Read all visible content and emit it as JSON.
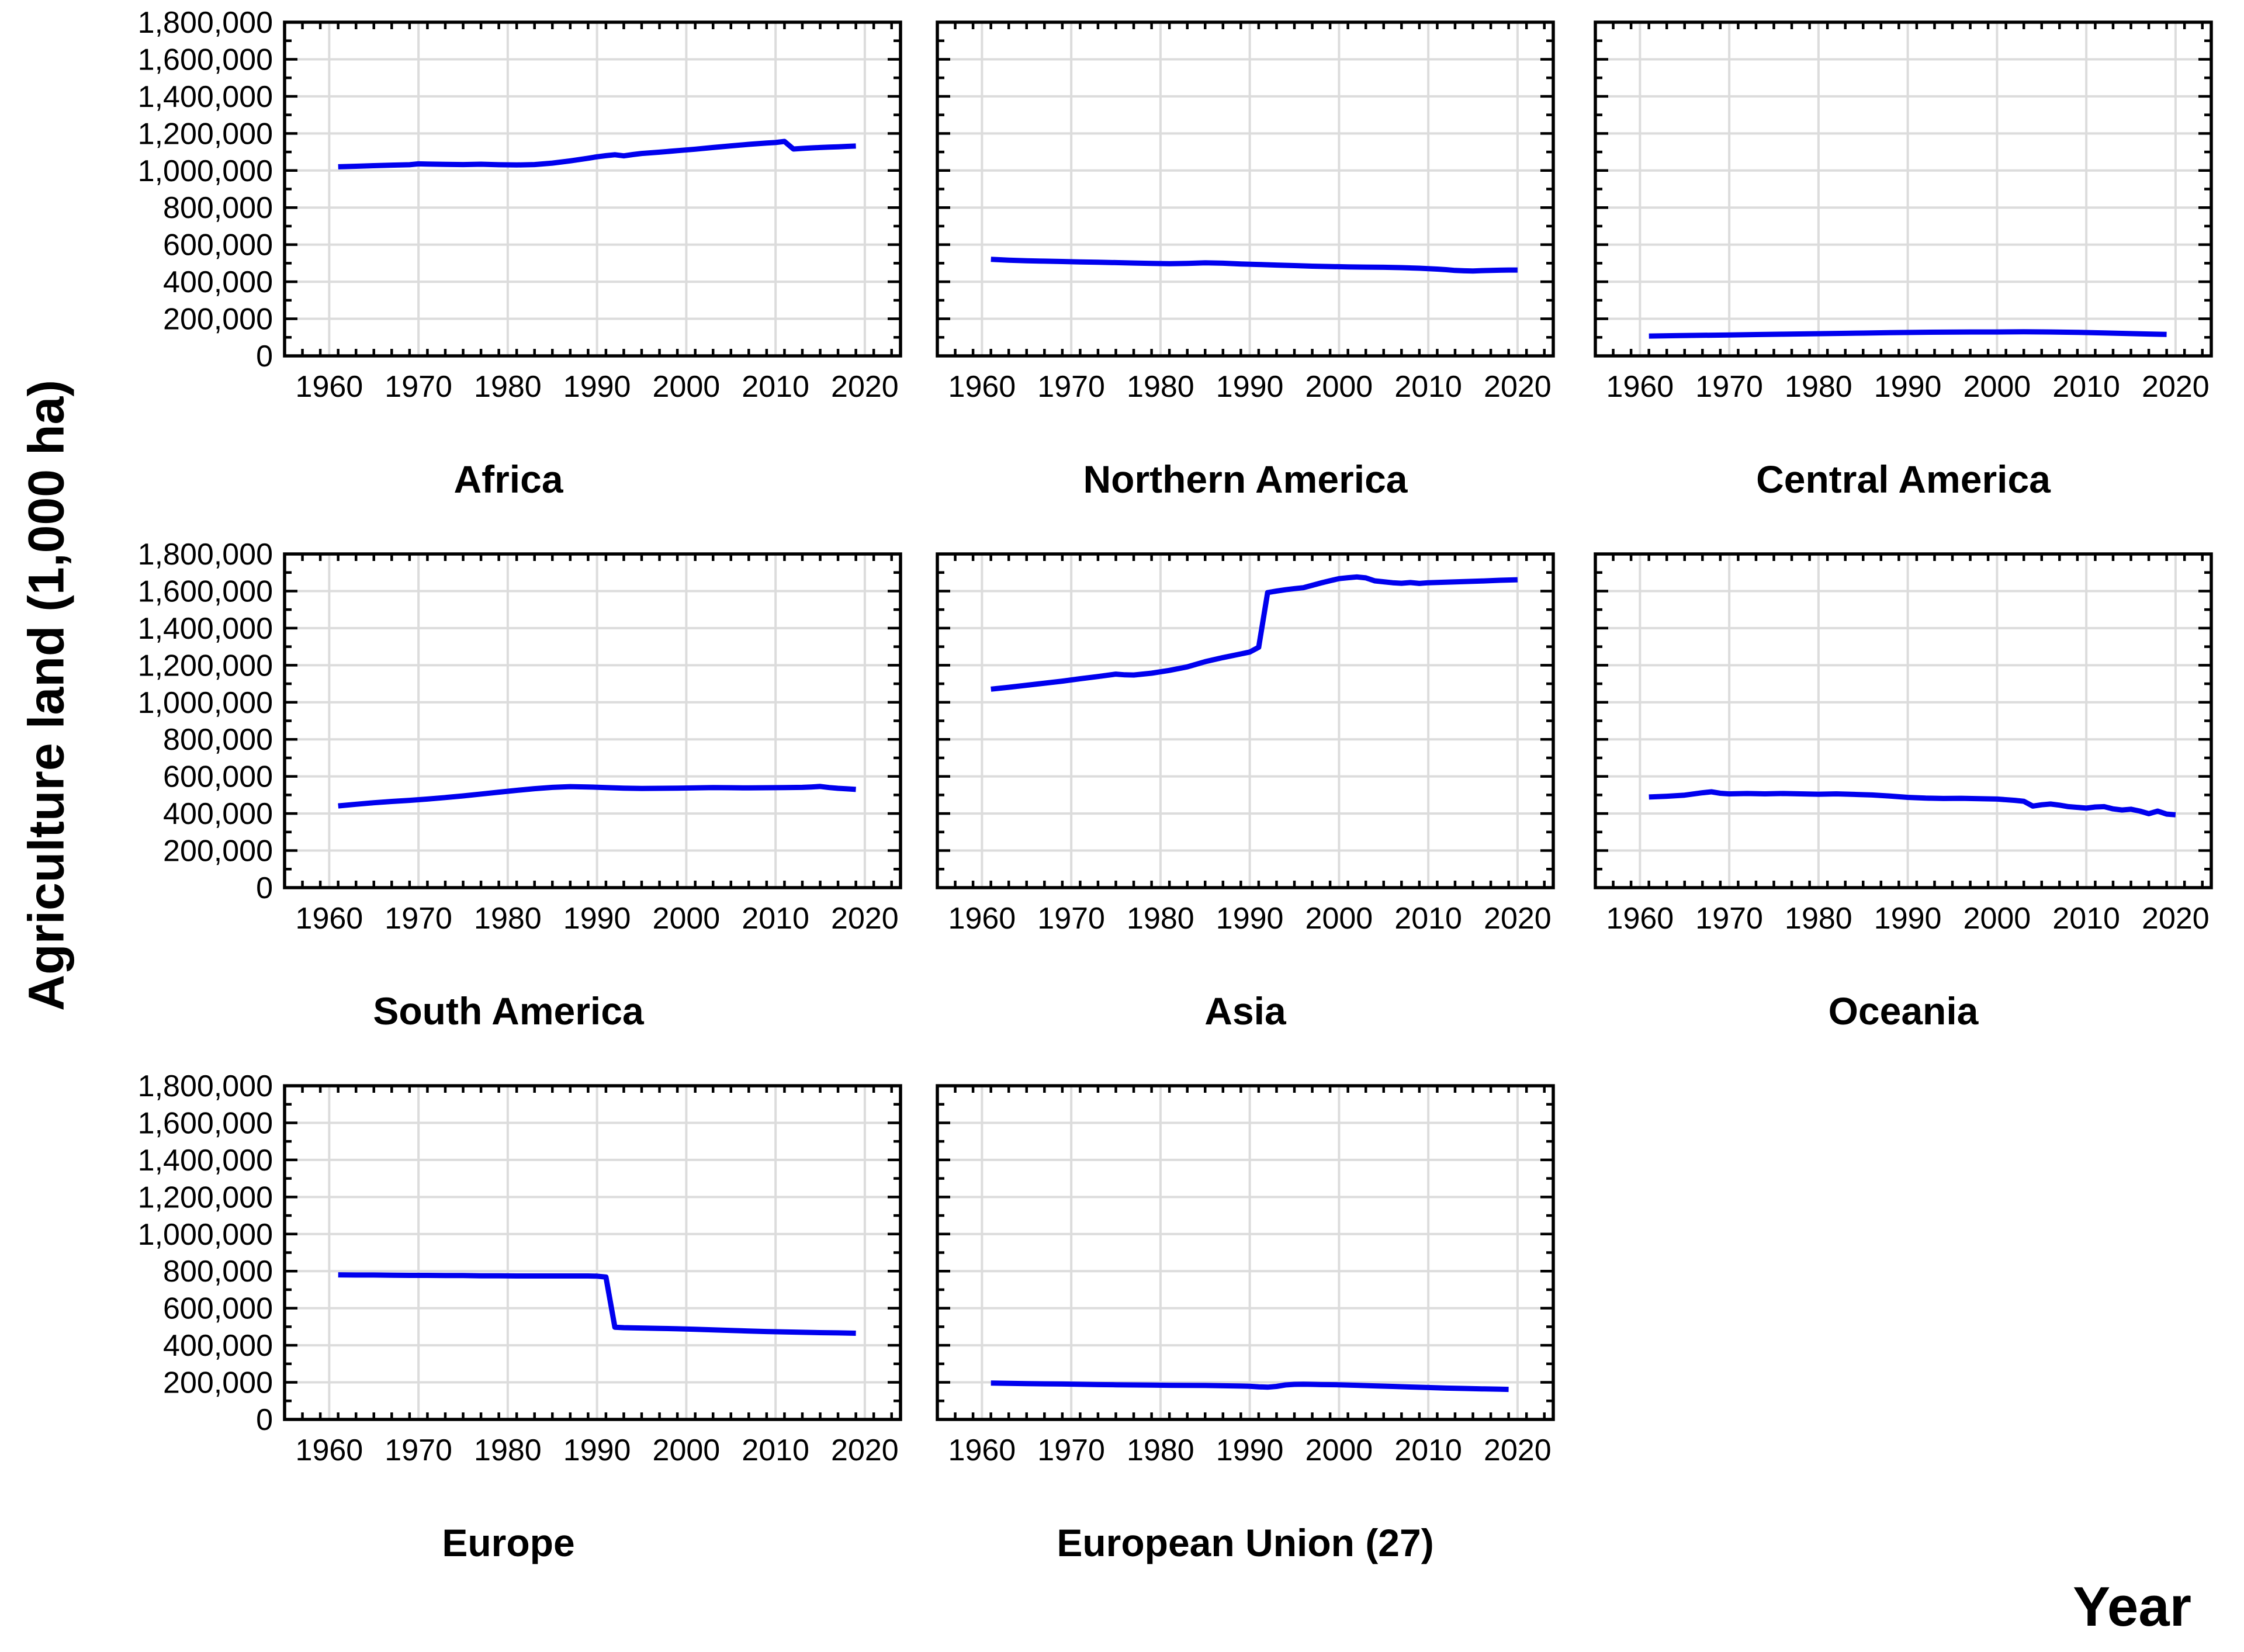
{
  "axis": {
    "y_label": "Agriculture land (1,000 ha)",
    "x_label": "Year"
  },
  "chart_data": {
    "type": "line",
    "title": "",
    "ylabel": "Agriculture land (1,000 ha)",
    "xlabel": "Year",
    "y_unit": "1,000 ha",
    "xlim": [
      1955,
      2024
    ],
    "ylim": [
      0,
      1800000
    ],
    "x_ticks": [
      1960,
      1970,
      1980,
      1990,
      2000,
      2010,
      2020
    ],
    "x_minor_step": 2,
    "y_ticks": [
      0,
      200000,
      400000,
      600000,
      800000,
      1000000,
      1200000,
      1400000,
      1600000,
      1800000
    ],
    "y_minor_step": 100000,
    "grid": true,
    "legend": "none",
    "line_color": "#0000ee",
    "grid_color": "#dcdcdc",
    "panels": [
      {
        "title": "Africa",
        "y_tick_labels": true,
        "series": [
          [
            1961,
            1020000
          ],
          [
            1963,
            1023000
          ],
          [
            1965,
            1026000
          ],
          [
            1967,
            1029000
          ],
          [
            1969,
            1031000
          ],
          [
            1970,
            1036000
          ],
          [
            1971,
            1035000
          ],
          [
            1973,
            1033000
          ],
          [
            1975,
            1032000
          ],
          [
            1977,
            1034000
          ],
          [
            1979,
            1031000
          ],
          [
            1981,
            1030000
          ],
          [
            1983,
            1032000
          ],
          [
            1985,
            1040000
          ],
          [
            1987,
            1052000
          ],
          [
            1989,
            1066000
          ],
          [
            1990,
            1074000
          ],
          [
            1991,
            1080000
          ],
          [
            1992,
            1085000
          ],
          [
            1993,
            1079000
          ],
          [
            1994,
            1086000
          ],
          [
            1995,
            1092000
          ],
          [
            1997,
            1099000
          ],
          [
            1999,
            1107000
          ],
          [
            2001,
            1115000
          ],
          [
            2003,
            1124000
          ],
          [
            2005,
            1133000
          ],
          [
            2007,
            1141000
          ],
          [
            2009,
            1148000
          ],
          [
            2010,
            1151000
          ],
          [
            2011,
            1157000
          ],
          [
            2012,
            1116000
          ],
          [
            2013,
            1119000
          ],
          [
            2014,
            1122000
          ],
          [
            2015,
            1124000
          ],
          [
            2016,
            1126000
          ],
          [
            2017,
            1128000
          ],
          [
            2018,
            1130000
          ],
          [
            2019,
            1132000
          ]
        ]
      },
      {
        "title": "Northern America",
        "y_tick_labels": false,
        "series": [
          [
            1961,
            521000
          ],
          [
            1963,
            516000
          ],
          [
            1965,
            513000
          ],
          [
            1967,
            511000
          ],
          [
            1969,
            509000
          ],
          [
            1971,
            507000
          ],
          [
            1973,
            505000
          ],
          [
            1975,
            503000
          ],
          [
            1977,
            501000
          ],
          [
            1979,
            499000
          ],
          [
            1981,
            497000
          ],
          [
            1983,
            499000
          ],
          [
            1985,
            502000
          ],
          [
            1987,
            500000
          ],
          [
            1989,
            496000
          ],
          [
            1991,
            493000
          ],
          [
            1993,
            490000
          ],
          [
            1995,
            487000
          ],
          [
            1997,
            484000
          ],
          [
            1999,
            482000
          ],
          [
            2001,
            480000
          ],
          [
            2003,
            479000
          ],
          [
            2005,
            478000
          ],
          [
            2007,
            476000
          ],
          [
            2009,
            473000
          ],
          [
            2011,
            468000
          ],
          [
            2012,
            465000
          ],
          [
            2013,
            461000
          ],
          [
            2014,
            459000
          ],
          [
            2015,
            458000
          ],
          [
            2016,
            460000
          ],
          [
            2017,
            461000
          ],
          [
            2018,
            462000
          ],
          [
            2019,
            463000
          ],
          [
            2020,
            463000
          ]
        ]
      },
      {
        "title": "Central America",
        "y_tick_labels": false,
        "series": [
          [
            1961,
            107000
          ],
          [
            1964,
            109000
          ],
          [
            1967,
            111000
          ],
          [
            1970,
            113000
          ],
          [
            1973,
            115000
          ],
          [
            1976,
            117000
          ],
          [
            1979,
            119000
          ],
          [
            1982,
            121000
          ],
          [
            1985,
            123000
          ],
          [
            1988,
            125000
          ],
          [
            1991,
            127000
          ],
          [
            1994,
            128000
          ],
          [
            1997,
            129000
          ],
          [
            2000,
            129000
          ],
          [
            2003,
            130000
          ],
          [
            2006,
            129000
          ],
          [
            2009,
            127000
          ],
          [
            2012,
            124000
          ],
          [
            2015,
            120000
          ],
          [
            2017,
            118000
          ],
          [
            2019,
            116000
          ]
        ]
      },
      {
        "title": "South America",
        "y_tick_labels": true,
        "series": [
          [
            1961,
            441000
          ],
          [
            1963,
            450000
          ],
          [
            1965,
            458000
          ],
          [
            1967,
            465000
          ],
          [
            1969,
            471000
          ],
          [
            1971,
            478000
          ],
          [
            1973,
            486000
          ],
          [
            1975,
            495000
          ],
          [
            1977,
            505000
          ],
          [
            1979,
            515000
          ],
          [
            1981,
            525000
          ],
          [
            1983,
            534000
          ],
          [
            1985,
            541000
          ],
          [
            1987,
            545000
          ],
          [
            1989,
            543000
          ],
          [
            1991,
            540000
          ],
          [
            1993,
            537000
          ],
          [
            1995,
            535000
          ],
          [
            1997,
            536000
          ],
          [
            1999,
            537000
          ],
          [
            2001,
            538000
          ],
          [
            2003,
            540000
          ],
          [
            2005,
            539000
          ],
          [
            2007,
            538000
          ],
          [
            2009,
            539000
          ],
          [
            2011,
            540000
          ],
          [
            2013,
            541000
          ],
          [
            2014,
            543000
          ],
          [
            2015,
            546000
          ],
          [
            2016,
            540000
          ],
          [
            2017,
            536000
          ],
          [
            2018,
            533000
          ],
          [
            2019,
            530000
          ]
        ]
      },
      {
        "title": "Asia",
        "y_tick_labels": false,
        "series": [
          [
            1961,
            1071000
          ],
          [
            1963,
            1081000
          ],
          [
            1965,
            1092000
          ],
          [
            1967,
            1103000
          ],
          [
            1969,
            1114000
          ],
          [
            1971,
            1127000
          ],
          [
            1973,
            1139000
          ],
          [
            1975,
            1152000
          ],
          [
            1976,
            1148000
          ],
          [
            1977,
            1147000
          ],
          [
            1979,
            1157000
          ],
          [
            1981,
            1172000
          ],
          [
            1983,
            1191000
          ],
          [
            1985,
            1219000
          ],
          [
            1987,
            1241000
          ],
          [
            1989,
            1261000
          ],
          [
            1990,
            1271000
          ],
          [
            1991,
            1297000
          ],
          [
            1992,
            1592000
          ],
          [
            1993,
            1600000
          ],
          [
            1994,
            1607000
          ],
          [
            1995,
            1613000
          ],
          [
            1996,
            1618000
          ],
          [
            1997,
            1631000
          ],
          [
            1998,
            1644000
          ],
          [
            1999,
            1656000
          ],
          [
            2000,
            1667000
          ],
          [
            2001,
            1672000
          ],
          [
            2002,
            1676000
          ],
          [
            2003,
            1671000
          ],
          [
            2004,
            1655000
          ],
          [
            2005,
            1650000
          ],
          [
            2006,
            1645000
          ],
          [
            2007,
            1642000
          ],
          [
            2008,
            1646000
          ],
          [
            2009,
            1641000
          ],
          [
            2010,
            1645000
          ],
          [
            2012,
            1648000
          ],
          [
            2014,
            1651000
          ],
          [
            2016,
            1654000
          ],
          [
            2018,
            1658000
          ],
          [
            2020,
            1661000
          ]
        ]
      },
      {
        "title": "Oceania",
        "y_tick_labels": false,
        "series": [
          [
            1961,
            489000
          ],
          [
            1963,
            493000
          ],
          [
            1965,
            499000
          ],
          [
            1967,
            512000
          ],
          [
            1968,
            517000
          ],
          [
            1969,
            509000
          ],
          [
            1970,
            506000
          ],
          [
            1972,
            508000
          ],
          [
            1974,
            506000
          ],
          [
            1976,
            508000
          ],
          [
            1978,
            506000
          ],
          [
            1980,
            504000
          ],
          [
            1982,
            506000
          ],
          [
            1984,
            503000
          ],
          [
            1986,
            500000
          ],
          [
            1988,
            494000
          ],
          [
            1990,
            487000
          ],
          [
            1992,
            483000
          ],
          [
            1994,
            481000
          ],
          [
            1996,
            482000
          ],
          [
            1998,
            480000
          ],
          [
            2000,
            478000
          ],
          [
            2002,
            471000
          ],
          [
            2003,
            466000
          ],
          [
            2004,
            440000
          ],
          [
            2005,
            447000
          ],
          [
            2006,
            451000
          ],
          [
            2007,
            445000
          ],
          [
            2008,
            437000
          ],
          [
            2009,
            433000
          ],
          [
            2010,
            429000
          ],
          [
            2011,
            435000
          ],
          [
            2012,
            437000
          ],
          [
            2013,
            425000
          ],
          [
            2014,
            419000
          ],
          [
            2015,
            423000
          ],
          [
            2016,
            413000
          ],
          [
            2017,
            399000
          ],
          [
            2018,
            413000
          ],
          [
            2019,
            397000
          ],
          [
            2020,
            393000
          ]
        ]
      },
      {
        "title": "Europe",
        "y_tick_labels": true,
        "series": [
          [
            1961,
            780000
          ],
          [
            1963,
            779000
          ],
          [
            1965,
            779000
          ],
          [
            1967,
            778000
          ],
          [
            1969,
            777000
          ],
          [
            1971,
            777000
          ],
          [
            1973,
            776000
          ],
          [
            1975,
            776000
          ],
          [
            1977,
            775000
          ],
          [
            1979,
            775000
          ],
          [
            1981,
            774000
          ],
          [
            1983,
            774000
          ],
          [
            1985,
            774000
          ],
          [
            1987,
            774000
          ],
          [
            1989,
            774000
          ],
          [
            1990,
            773000
          ],
          [
            1991,
            768000
          ],
          [
            1992,
            497000
          ],
          [
            1993,
            495000
          ],
          [
            1995,
            493000
          ],
          [
            1997,
            491000
          ],
          [
            1999,
            489000
          ],
          [
            2001,
            486000
          ],
          [
            2003,
            483000
          ],
          [
            2005,
            480000
          ],
          [
            2007,
            477000
          ],
          [
            2009,
            474000
          ],
          [
            2011,
            472000
          ],
          [
            2013,
            470000
          ],
          [
            2015,
            468000
          ],
          [
            2017,
            467000
          ],
          [
            2019,
            465000
          ]
        ]
      },
      {
        "title": "European Union (27)",
        "y_tick_labels": false,
        "series": [
          [
            1961,
            196000
          ],
          [
            1963,
            194500
          ],
          [
            1965,
            193000
          ],
          [
            1967,
            192000
          ],
          [
            1969,
            191000
          ],
          [
            1971,
            189500
          ],
          [
            1973,
            188000
          ],
          [
            1975,
            187000
          ],
          [
            1977,
            186000
          ],
          [
            1979,
            185000
          ],
          [
            1981,
            184000
          ],
          [
            1983,
            183500
          ],
          [
            1985,
            183000
          ],
          [
            1987,
            181500
          ],
          [
            1989,
            180000
          ],
          [
            1990,
            179000
          ],
          [
            1991,
            176000
          ],
          [
            1992,
            174000
          ],
          [
            1993,
            178000
          ],
          [
            1994,
            186000
          ],
          [
            1995,
            189000
          ],
          [
            1996,
            190000
          ],
          [
            1997,
            189000
          ],
          [
            1998,
            188000
          ],
          [
            1999,
            187500
          ],
          [
            2000,
            187000
          ],
          [
            2002,
            184000
          ],
          [
            2004,
            181000
          ],
          [
            2006,
            178000
          ],
          [
            2008,
            175000
          ],
          [
            2010,
            172000
          ],
          [
            2012,
            169000
          ],
          [
            2014,
            167000
          ],
          [
            2016,
            165000
          ],
          [
            2018,
            163000
          ],
          [
            2019,
            162000
          ]
        ]
      }
    ]
  }
}
